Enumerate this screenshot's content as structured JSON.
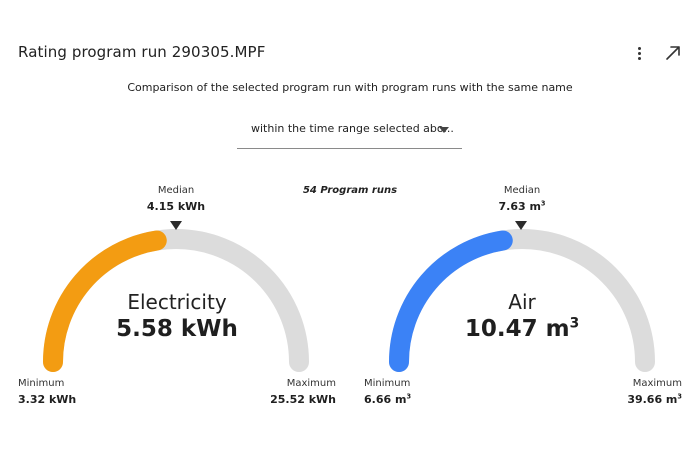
{
  "header": {
    "title": "Rating program run 290305.MPF",
    "more_icon": "more-vertical-icon",
    "expand_icon": "expand-arrow-icon"
  },
  "subtitle": "Comparison of the selected program run with program runs with the same name",
  "time_range": {
    "selected_value": "within the time range selected abo...",
    "caret_icon": "caret-down-icon"
  },
  "runs_label": "54 Program runs",
  "gauges": [
    {
      "name": "Electricity",
      "value_text": "5.58 kWh",
      "value": 5.58,
      "minimum_label": "Minimum",
      "minimum_text": "3.32 kWh",
      "minimum": 3.32,
      "maximum_label": "Maximum",
      "maximum_text": "25.52 kWh",
      "maximum": 25.52,
      "median_label": "Median",
      "median_text": "4.15 kWh",
      "median": 4.15,
      "fill_fraction": 0.45,
      "color": "#f39c12",
      "track_color": "#dcdcdc"
    },
    {
      "name": "Air",
      "value_text": "10.47 m",
      "value_sup": "3",
      "value": 10.47,
      "minimum_label": "Minimum",
      "minimum_text": "6.66 m",
      "minimum_sup": "3",
      "minimum": 6.66,
      "maximum_label": "Maximum",
      "maximum_text": "39.66 m",
      "maximum_sup": "3",
      "maximum": 39.66,
      "median_label": "Median",
      "median_text": "7.63 m",
      "median_sup": "3",
      "median": 7.63,
      "fill_fraction": 0.45,
      "color": "#3b82f6",
      "track_color": "#dcdcdc"
    }
  ]
}
